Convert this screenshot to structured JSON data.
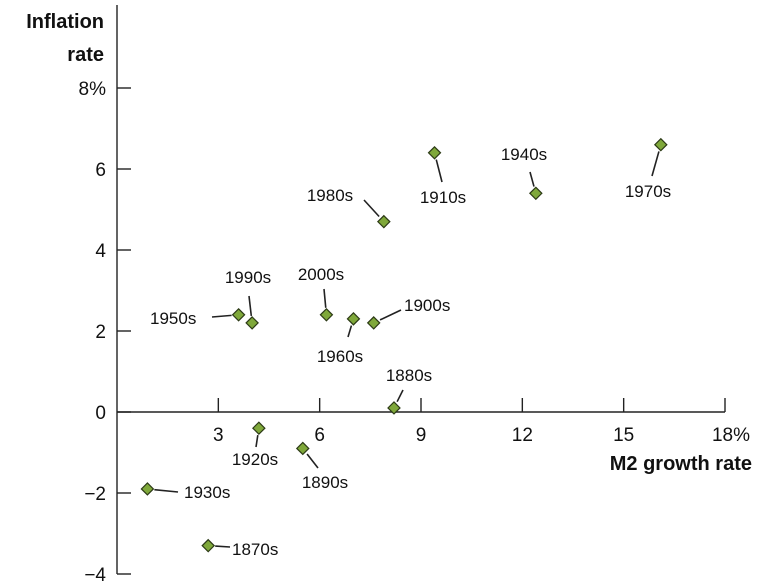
{
  "chart_data": {
    "type": "scatter",
    "title": "",
    "ylabel_lines": [
      "Inflation",
      "rate"
    ],
    "xlabel": "M2 growth rate",
    "xlim": [
      0,
      18
    ],
    "ylim": [
      -4,
      8
    ],
    "x_ticks": [
      "3",
      "6",
      "9",
      "12",
      "15",
      "18%"
    ],
    "y_ticks": [
      "8%",
      "6",
      "4",
      "2",
      "0",
      "−2",
      "−4"
    ],
    "marker_color": "#7fa83a",
    "grid": false,
    "points": [
      {
        "label": "1870s",
        "x": 2.7,
        "y": -3.3
      },
      {
        "label": "1880s",
        "x": 8.2,
        "y": 0.1
      },
      {
        "label": "1890s",
        "x": 5.5,
        "y": -0.9
      },
      {
        "label": "1900s",
        "x": 7.6,
        "y": 2.2
      },
      {
        "label": "1910s",
        "x": 9.4,
        "y": 6.4
      },
      {
        "label": "1920s",
        "x": 4.2,
        "y": -0.4
      },
      {
        "label": "1930s",
        "x": 0.9,
        "y": -1.9
      },
      {
        "label": "1940s",
        "x": 12.4,
        "y": 5.4
      },
      {
        "label": "1950s",
        "x": 3.6,
        "y": 2.4
      },
      {
        "label": "1960s",
        "x": 7.0,
        "y": 2.3
      },
      {
        "label": "1970s",
        "x": 16.1,
        "y": 6.6
      },
      {
        "label": "1980s",
        "x": 7.9,
        "y": 4.7
      },
      {
        "label": "1990s",
        "x": 4.0,
        "y": 2.2
      },
      {
        "label": "2000s",
        "x": 6.2,
        "y": 2.4
      }
    ]
  }
}
